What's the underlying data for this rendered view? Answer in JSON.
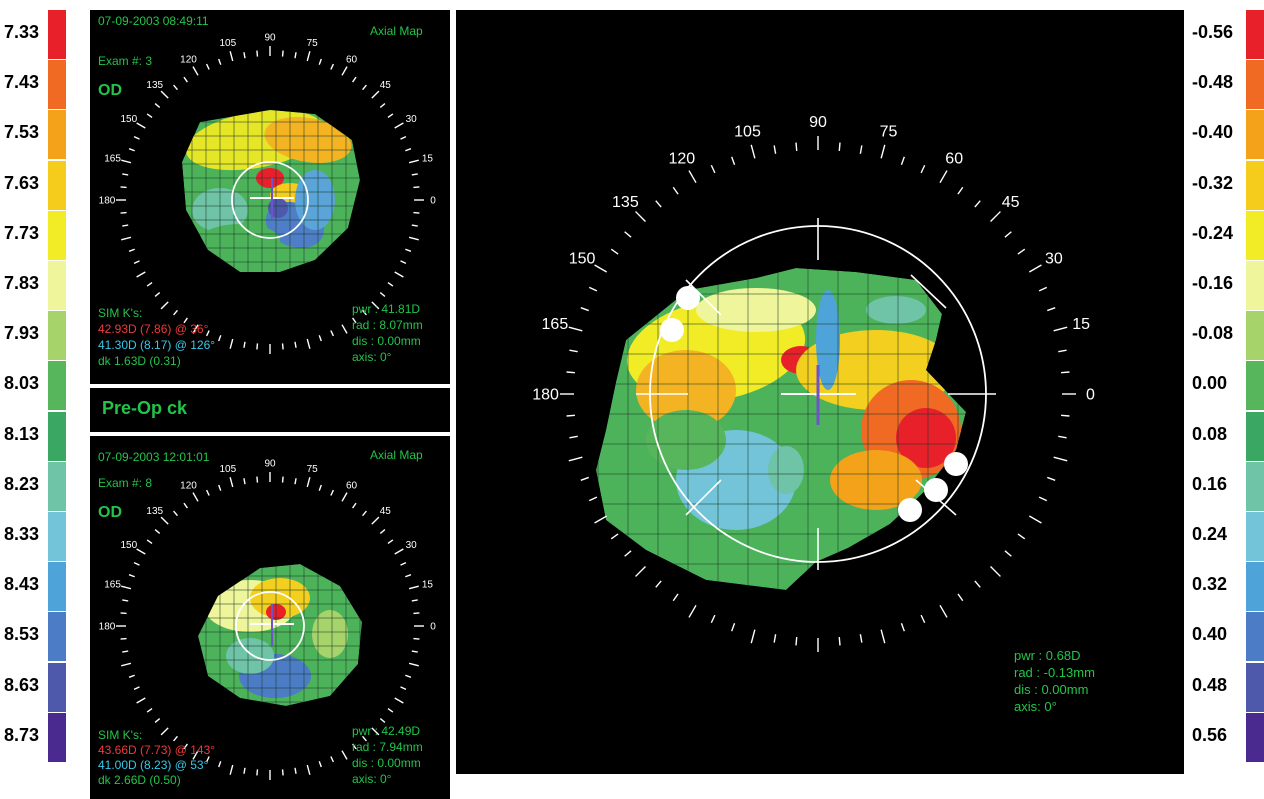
{
  "left_scale": {
    "labels": [
      "7.33",
      "7.43",
      "7.53",
      "7.63",
      "7.73",
      "7.83",
      "7.93",
      "8.03",
      "8.13",
      "8.23",
      "8.33",
      "8.43",
      "8.53",
      "8.63",
      "8.73"
    ],
    "colors": [
      "#e8202a",
      "#f06a24",
      "#f4a21a",
      "#f5cc1c",
      "#f1ec26",
      "#eef59a",
      "#a7d46a",
      "#57b65c",
      "#3aa862",
      "#6fc3a6",
      "#73c4d8",
      "#4ea3d8",
      "#4c7cc5",
      "#4f59ab",
      "#4a2a8e"
    ]
  },
  "right_scale": {
    "labels": [
      "-0.56",
      "-0.48",
      "-0.40",
      "-0.32",
      "-0.24",
      "-0.16",
      "-0.08",
      "0.00",
      "0.08",
      "0.16",
      "0.24",
      "0.32",
      "0.40",
      "0.48",
      "0.56"
    ],
    "colors": [
      "#e8202a",
      "#f06a24",
      "#f4a21a",
      "#f5cc1c",
      "#f1ec26",
      "#eef59a",
      "#a7d46a",
      "#57b65c",
      "#3aa862",
      "#6fc3a6",
      "#73c4d8",
      "#4ea3d8",
      "#4c7cc5",
      "#4f59ab",
      "#4a2a8e"
    ]
  },
  "top_exam": {
    "datetime": "07-09-2003 08:49:11",
    "map_type": "Axial Map",
    "exam": "Exam #: 3",
    "eye": "OD",
    "sim_title": "SIM K's:",
    "sim1": "42.93D (7.86) @ 36°",
    "sim2": "41.30D (8.17) @ 126°",
    "dk": "dk 1.63D (0.31)",
    "pwr": "pwr : 41.81D",
    "rad": "rad : 8.07mm",
    "dis": "dis : 0.00mm",
    "axis": "axis: 0°"
  },
  "middle_label": "Pre-Op ck",
  "bottom_exam": {
    "datetime": "07-09-2003 12:01:01",
    "map_type": "Axial Map",
    "exam": "Exam #: 8",
    "eye": "OD",
    "sim_title": "SIM K's:",
    "sim1": "43.66D (7.73) @ 143°",
    "sim2": "41.00D (8.23) @ 53°",
    "dk": "dk 2.66D (0.50)",
    "pwr": "pwr : 42.49D",
    "rad": "rad : 7.94mm",
    "dis": "dis : 0.00mm",
    "axis": "axis: 0°"
  },
  "diff_map": {
    "pwr": "pwr : 0.68D",
    "rad": "rad : -0.13mm",
    "dis": "dis : 0.00mm",
    "axis": "axis: 0°"
  },
  "small_axis_labels": [
    "90",
    "75",
    "60",
    "45",
    "30",
    "15",
    "0",
    "105",
    "120",
    "135",
    "150",
    "165",
    "180"
  ],
  "large_axis_labels": [
    "90",
    "75",
    "60",
    "45",
    "30",
    "15",
    "0",
    "105",
    "120",
    "135",
    "150",
    "165",
    "180"
  ],
  "colors": {
    "panel_bg": "#000000",
    "text_green": "#22c54a",
    "text_red": "#f03a3a",
    "text_cyan": "#38c8e8"
  }
}
